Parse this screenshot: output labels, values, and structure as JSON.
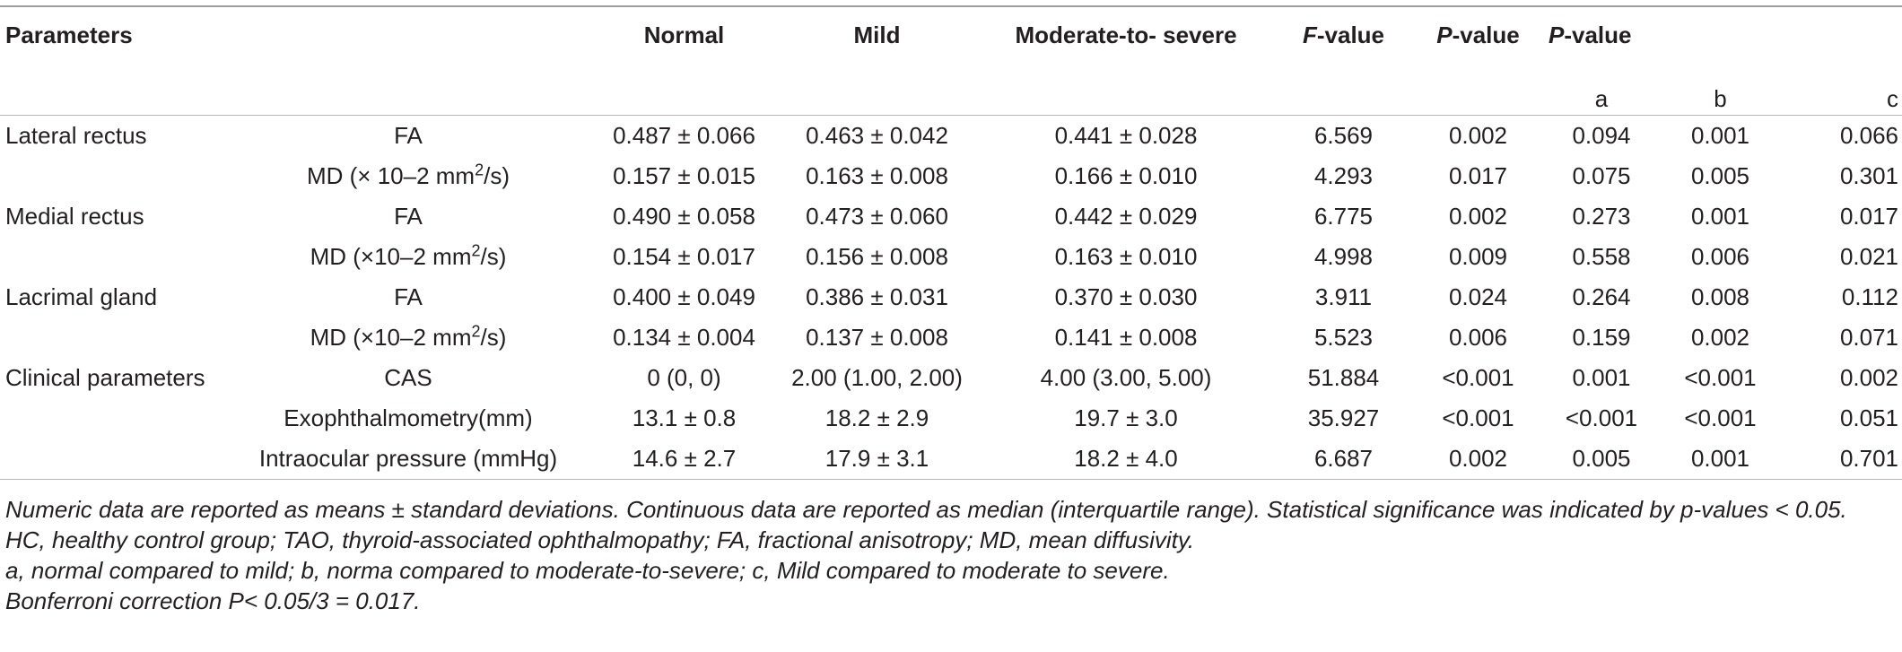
{
  "headers": {
    "parameters": "Parameters",
    "normal": "Normal",
    "mild": "Mild",
    "moderate_severe": "Moderate-to- severe",
    "f_value": "F-value",
    "p_value": "P-value",
    "p_value_pairwise": "P-value",
    "sub_a": "a",
    "sub_b": "b",
    "sub_c": "c"
  },
  "rows": [
    {
      "group": "Lateral rectus",
      "param": "FA",
      "unit_sup": "",
      "unit_tail": "",
      "normal": "0.487 ± 0.066",
      "mild": "0.463 ± 0.042",
      "moderate": "0.441 ± 0.028",
      "f": "6.569",
      "p": "0.002",
      "a": "0.094",
      "b": "0.001",
      "c": "0.066"
    },
    {
      "group": "",
      "param": "MD (× 10–2 mm",
      "unit_sup": "2",
      "unit_tail": "/s)",
      "normal": "0.157 ± 0.015",
      "mild": "0.163 ± 0.008",
      "moderate": "0.166 ± 0.010",
      "f": "4.293",
      "p": "0.017",
      "a": "0.075",
      "b": "0.005",
      "c": "0.301"
    },
    {
      "group": "Medial rectus",
      "param": "FA",
      "unit_sup": "",
      "unit_tail": "",
      "normal": "0.490 ± 0.058",
      "mild": "0.473 ± 0.060",
      "moderate": "0.442 ± 0.029",
      "f": "6.775",
      "p": "0.002",
      "a": "0.273",
      "b": "0.001",
      "c": "0.017"
    },
    {
      "group": "",
      "param": "MD (×10–2 mm",
      "unit_sup": "2",
      "unit_tail": "/s)",
      "normal": "0.154 ± 0.017",
      "mild": "0.156 ± 0.008",
      "moderate": "0.163 ± 0.010",
      "f": "4.998",
      "p": "0.009",
      "a": "0.558",
      "b": "0.006",
      "c": "0.021"
    },
    {
      "group": "Lacrimal gland",
      "param": "FA",
      "unit_sup": "",
      "unit_tail": "",
      "normal": "0.400 ± 0.049",
      "mild": "0.386 ± 0.031",
      "moderate": "0.370 ± 0.030",
      "f": "3.911",
      "p": "0.024",
      "a": "0.264",
      "b": "0.008",
      "c": "0.112"
    },
    {
      "group": "",
      "param": "MD (×10–2 mm",
      "unit_sup": "2",
      "unit_tail": "/s)",
      "normal": "0.134 ± 0.004",
      "mild": "0.137 ± 0.008",
      "moderate": "0.141 ± 0.008",
      "f": "5.523",
      "p": "0.006",
      "a": "0.159",
      "b": "0.002",
      "c": "0.071"
    },
    {
      "group": "Clinical parameters",
      "param": "CAS",
      "unit_sup": "",
      "unit_tail": "",
      "normal": "0 (0, 0)",
      "mild": "2.00 (1.00, 2.00)",
      "moderate": "4.00 (3.00, 5.00)",
      "f": "51.884",
      "p": "<0.001",
      "a": "0.001",
      "b": "<0.001",
      "c": "0.002"
    },
    {
      "group": "",
      "param": "Exophthalmometry(mm)",
      "unit_sup": "",
      "unit_tail": "",
      "normal": "13.1 ± 0.8",
      "mild": "18.2 ± 2.9",
      "moderate": "19.7 ± 3.0",
      "f": "35.927",
      "p": "<0.001",
      "a": "<0.001",
      "b": "<0.001",
      "c": "0.051"
    },
    {
      "group": "",
      "param": "Intraocular pressure (mmHg)",
      "unit_sup": "",
      "unit_tail": "",
      "normal": "14.6 ± 2.7",
      "mild": "17.9 ± 3.1",
      "moderate": "18.2 ± 4.0",
      "f": "6.687",
      "p": "0.002",
      "a": "0.005",
      "b": "0.001",
      "c": "0.701"
    }
  ],
  "footnotes": {
    "note1": "Numeric data are reported as means ± standard deviations. Continuous data are reported as median (interquartile range). Statistical significance was indicated by p-values < 0.05.",
    "note2": "HC, healthy control group; TAO, thyroid-associated ophthalmopathy; FA, fractional anisotropy; MD, mean diffusivity.",
    "note3": "a, normal compared to mild; b, norma compared to moderate-to-severe; c, Mild compared to moderate to severe.",
    "note4": "Bonferroni correction P< 0.05/3 = 0.017."
  }
}
